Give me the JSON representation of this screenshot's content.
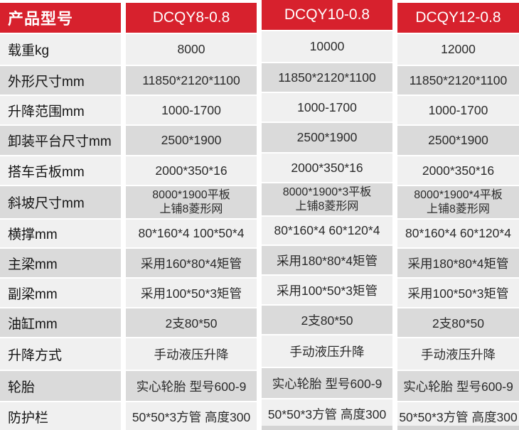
{
  "header": {
    "product_label": "产品型号",
    "models": [
      "DCQY8-0.8",
      "DCQY10-0.8",
      "DCQY12-0.8"
    ]
  },
  "rows": [
    {
      "label": "载重kg",
      "values": [
        "8000",
        "10000",
        "12000"
      ]
    },
    {
      "label": "外形尺寸mm",
      "values": [
        "11850*2120*1100",
        "11850*2120*1100",
        "11850*2120*1100"
      ]
    },
    {
      "label": "升降范围mm",
      "values": [
        "1000-1700",
        "1000-1700",
        "1000-1700"
      ]
    },
    {
      "label": "卸装平台尺寸mm",
      "values": [
        "2500*1900",
        "2500*1900",
        "2500*1900"
      ]
    },
    {
      "label": "搭车舌板mm",
      "values": [
        "2000*350*16",
        "2000*350*16",
        "2000*350*16"
      ]
    },
    {
      "label": "斜坡尺寸mm",
      "values": [
        "8000*1900平板\n上铺8菱形网",
        "8000*1900*3平板\n上铺8菱形网",
        "8000*1900*4平板\n上铺8菱形网"
      ]
    },
    {
      "label": "横撑mm",
      "values": [
        "80*160*4 100*50*4",
        "80*160*4 60*120*4",
        "80*160*4 60*120*4"
      ]
    },
    {
      "label": "主梁mm",
      "values": [
        "采用160*80*4矩管",
        "采用180*80*4矩管",
        "采用180*80*4矩管"
      ]
    },
    {
      "label": "副梁mm",
      "values": [
        "采用100*50*3矩管",
        "采用100*50*3矩管",
        "采用100*50*3矩管"
      ]
    },
    {
      "label": "油缸mm",
      "values": [
        "2支80*50",
        "2支80*50",
        "2支80*50"
      ]
    },
    {
      "label": "升降方式",
      "values": [
        "手动液压升降",
        "手动液压升降",
        "手动液压升降"
      ]
    },
    {
      "label": "轮胎",
      "values": [
        "实心轮胎 型号600-9",
        "实心轮胎 型号600-9",
        "实心轮胎 型号600-9"
      ]
    },
    {
      "label": "防护栏",
      "values": [
        "50*50*3方管 高度300",
        "50*50*3方管 高度300",
        "50*50*3方管 高度300"
      ]
    }
  ],
  "colors": {
    "header_red": "#d7212d",
    "row_light": "#f0f0f0",
    "row_dark": "#dadada",
    "text": "#2b2b2b"
  }
}
